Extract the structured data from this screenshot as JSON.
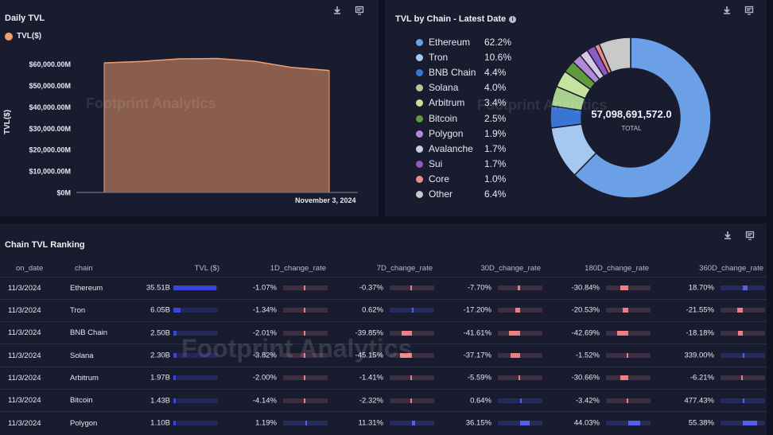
{
  "watermark": "Footprint Analytics",
  "daily_tvl": {
    "title": "Daily TVL",
    "legend_label": "TVL($)",
    "ylabel": "TVL($)",
    "date_label": "November 3, 2024",
    "chart_data": {
      "type": "area",
      "y": [
        60500,
        61200,
        62400,
        62600,
        61300,
        58400,
        57000
      ],
      "yticks": [
        "$0M",
        "$10,000.00M",
        "$20,000.00M",
        "$30,000.00M",
        "$40,000.00M",
        "$50,000.00M",
        "$60,000.00M"
      ],
      "ylim": [
        0,
        65000
      ],
      "color": "#f0a070",
      "fill": "#8a5e4f"
    }
  },
  "tvl_by_chain": {
    "title": "TVL by Chain - Latest Date",
    "total_value": "57,098,691,572.0",
    "total_label": "TOTAL",
    "chart_data": {
      "type": "pie",
      "slices": [
        {
          "name": "Ethereum",
          "pct": "62.2%",
          "value": 62.2,
          "color": "#6b9fe6"
        },
        {
          "name": "Tron",
          "pct": "10.6%",
          "value": 10.6,
          "color": "#a6c8f0"
        },
        {
          "name": "BNB Chain",
          "pct": "4.4%",
          "value": 4.4,
          "color": "#3a75d6"
        },
        {
          "name": "Solana",
          "pct": "4.0%",
          "value": 4.0,
          "color": "#a9d18e"
        },
        {
          "name": "Arbitrum",
          "pct": "3.4%",
          "value": 3.4,
          "color": "#c3e39f"
        },
        {
          "name": "Bitcoin",
          "pct": "2.5%",
          "value": 2.5,
          "color": "#5e9b3c"
        },
        {
          "name": "Polygon",
          "pct": "1.9%",
          "value": 1.9,
          "color": "#b08ad8"
        },
        {
          "name": "Avalanche",
          "pct": "1.7%",
          "value": 1.7,
          "color": "#d6c7ea"
        },
        {
          "name": "Sui",
          "pct": "1.7%",
          "value": 1.7,
          "color": "#8b5cc4"
        },
        {
          "name": "Core",
          "pct": "1.0%",
          "value": 1.0,
          "color": "#f08a84"
        },
        {
          "name": "Other",
          "pct": "6.4%",
          "value": 6.4,
          "color": "#c9c9c9"
        }
      ]
    }
  },
  "ranking": {
    "title": "Chain TVL Ranking",
    "columns": [
      "on_date",
      "chain",
      "TVL ($)",
      "1D_change_rate",
      "7D_change_rate",
      "30D_change_rate",
      "180D_change_rate",
      "360D_change_rate"
    ],
    "rows": [
      {
        "date": "11/3/2024",
        "chain": "Ethereum",
        "tvl": "35.51B",
        "tvl_share": 1.0,
        "rates": [
          "-1.07%",
          "-0.37%",
          "-7.70%",
          "-30.84%",
          "18.70%"
        ]
      },
      {
        "date": "11/3/2024",
        "chain": "Tron",
        "tvl": "6.05B",
        "tvl_share": 0.17,
        "rates": [
          "-1.34%",
          "0.62%",
          "-17.20%",
          "-20.53%",
          "-21.55%"
        ]
      },
      {
        "date": "11/3/2024",
        "chain": "BNB Chain",
        "tvl": "2.50B",
        "tvl_share": 0.07,
        "rates": [
          "-2.01%",
          "-39.85%",
          "-41.61%",
          "-42.69%",
          "-18.18%"
        ]
      },
      {
        "date": "11/3/2024",
        "chain": "Solana",
        "tvl": "2.30B",
        "tvl_share": 0.065,
        "rates": [
          "-3.82%",
          "-45.15%",
          "-37.17%",
          "-1.52%",
          "339.00%"
        ]
      },
      {
        "date": "11/3/2024",
        "chain": "Arbitrum",
        "tvl": "1.97B",
        "tvl_share": 0.055,
        "rates": [
          "-2.00%",
          "-1.41%",
          "-5.59%",
          "-30.66%",
          "-6.21%"
        ]
      },
      {
        "date": "11/3/2024",
        "chain": "Bitcoin",
        "tvl": "1.43B",
        "tvl_share": 0.04,
        "rates": [
          "-4.14%",
          "-2.32%",
          "0.64%",
          "-3.42%",
          "477.43%"
        ]
      },
      {
        "date": "11/3/2024",
        "chain": "Polygon",
        "tvl": "1.10B",
        "tvl_share": 0.031,
        "rates": [
          "1.19%",
          "11.31%",
          "36.15%",
          "44.03%",
          "55.38%"
        ]
      }
    ],
    "rate_colors": {
      "negative": "#f08080",
      "positive": "#5560e8"
    }
  }
}
